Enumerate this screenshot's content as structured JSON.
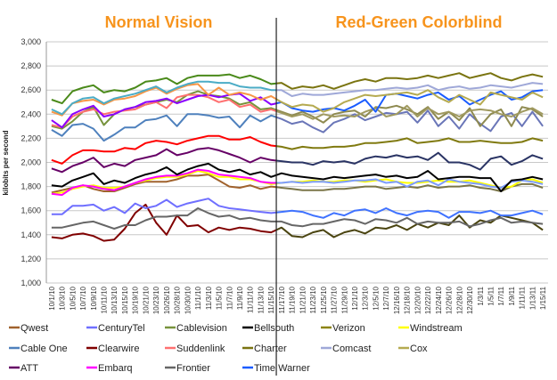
{
  "chart_data": {
    "type": "line",
    "titles": [
      "Normal Vision",
      "Red-Green Colorblind"
    ],
    "ylabel": "kilobits per second",
    "xlabel": "",
    "ylim": [
      1000,
      3000
    ],
    "yticks": [
      1000,
      1200,
      1400,
      1600,
      1800,
      2000,
      2200,
      2400,
      2600,
      2800,
      3000
    ],
    "ytick_labels": [
      "1,000",
      "1,200",
      "1,400",
      "1,600",
      "1,800",
      "2,000",
      "2,200",
      "2,400",
      "2,600",
      "2,800",
      "3,000"
    ],
    "grid": "horizontal",
    "divider_after": "11/15/10",
    "categories": [
      "10/1/10",
      "10/3/10",
      "10/5/10",
      "10/7/10",
      "10/9/10",
      "10/11/10",
      "10/13/10",
      "10/15/10",
      "10/19/10",
      "10/21/10",
      "10/23/10",
      "10/26/10",
      "10/28/10",
      "10/30/10",
      "11/1/10",
      "11/3/10",
      "11/5/10",
      "11/7/10",
      "11/9/10",
      "11/11/10",
      "11/13/10",
      "11/15/10",
      "11/17/10",
      "11/19/10",
      "11/21/10",
      "11/23/10",
      "11/25/10",
      "11/27/10",
      "11/29/10",
      "12/1/10",
      "12/3/10",
      "12/5/10",
      "12/7/10",
      "12/16/10",
      "12/18/10",
      "12/20/10",
      "12/22/10",
      "12/24/10",
      "12/26/10",
      "12/28/10",
      "12/30/10",
      "1/3/11",
      "1/5/11",
      "1/7/11",
      "1/9/11",
      "1/11/11",
      "1/13/11",
      "1/15/11"
    ],
    "series": [
      {
        "name": "Charter",
        "color_normal": "#4a8a1a",
        "color_colorblind": "#7a7410",
        "values": [
          2520,
          2490,
          2590,
          2620,
          2640,
          2580,
          2600,
          2590,
          2620,
          2670,
          2680,
          2700,
          2650,
          2700,
          2720,
          2720,
          2720,
          2730,
          2700,
          2720,
          2690,
          2650,
          2660,
          2610,
          2630,
          2620,
          2640,
          2610,
          2640,
          2670,
          2690,
          2670,
          2700,
          2700,
          2690,
          2700,
          2720,
          2700,
          2720,
          2740,
          2700,
          2720,
          2740,
          2700,
          2680,
          2710,
          2730,
          2710
        ]
      },
      {
        "name": "Comcast",
        "color_normal": "#4bacc6",
        "color_colorblind": "#9fa8d8",
        "values": [
          2440,
          2400,
          2490,
          2530,
          2540,
          2490,
          2530,
          2550,
          2570,
          2600,
          2630,
          2580,
          2620,
          2650,
          2670,
          2670,
          2660,
          2660,
          2630,
          2620,
          2620,
          2600,
          2600,
          2550,
          2570,
          2560,
          2560,
          2570,
          2580,
          2590,
          2600,
          2600,
          2610,
          2620,
          2610,
          2620,
          2640,
          2600,
          2620,
          2630,
          2610,
          2620,
          2640,
          2630,
          2620,
          2640,
          2660,
          2650
        ]
      },
      {
        "name": "Cox",
        "color_normal": "#f79646",
        "color_colorblind": "#b5aa50",
        "values": [
          2420,
          2390,
          2490,
          2510,
          2520,
          2480,
          2520,
          2530,
          2550,
          2590,
          2620,
          2570,
          2610,
          2640,
          2650,
          2560,
          2620,
          2560,
          2580,
          2560,
          2520,
          2550,
          2500,
          2460,
          2480,
          2470,
          2420,
          2450,
          2500,
          2530,
          2560,
          2550,
          2560,
          2570,
          2580,
          2560,
          2600,
          2540,
          2500,
          2560,
          2520,
          2480,
          2580,
          2560,
          2540,
          2520,
          2580,
          2540
        ]
      },
      {
        "name": "Time Warner",
        "color_normal": "#8b00ff",
        "color_colorblind": "#1a5cff",
        "values": [
          2350,
          2290,
          2400,
          2440,
          2470,
          2380,
          2400,
          2440,
          2460,
          2500,
          2510,
          2530,
          2490,
          2520,
          2550,
          2560,
          2540,
          2560,
          2570,
          2510,
          2540,
          2480,
          2500,
          2450,
          2430,
          2420,
          2440,
          2450,
          2430,
          2470,
          2520,
          2420,
          2560,
          2570,
          2550,
          2530,
          2560,
          2580,
          2520,
          2550,
          2480,
          2520,
          2560,
          2590,
          2520,
          2540,
          2590,
          2600
        ]
      },
      {
        "name": "Suddenlink",
        "color_normal": "#ff7070",
        "color_colorblind": "#a09a60",
        "values": [
          2310,
          2290,
          2380,
          2420,
          2440,
          2400,
          2420,
          2430,
          2440,
          2480,
          2500,
          2450,
          2540,
          2560,
          2560,
          2540,
          2500,
          2520,
          2460,
          2480,
          2420,
          2440,
          2410,
          2380,
          2400,
          2360,
          2400,
          2380,
          2390,
          2380,
          2420,
          2450,
          2380,
          2400,
          2470,
          2380,
          2450,
          2400,
          2420,
          2380,
          2430,
          2440,
          2430,
          2400,
          2380,
          2420,
          2450,
          2400
        ]
      },
      {
        "name": "Cablevision",
        "color_normal": "#77933c",
        "color_colorblind": "#8e8a50",
        "values": [
          2300,
          2280,
          2340,
          2420,
          2460,
          2310,
          2400,
          2440,
          2460,
          2480,
          2500,
          2520,
          2500,
          2560,
          2590,
          2560,
          2550,
          2530,
          2480,
          2500,
          2440,
          2450,
          2420,
          2390,
          2420,
          2380,
          2330,
          2400,
          2420,
          2430,
          2380,
          2460,
          2450,
          2470,
          2440,
          2400,
          2460,
          2360,
          2420,
          2350,
          2450,
          2300,
          2400,
          2440,
          2300,
          2460,
          2440,
          2380
        ]
      },
      {
        "name": "Cable One",
        "color_normal": "#4f81bd",
        "color_colorblind": "#6a76b8",
        "values": [
          2270,
          2220,
          2310,
          2320,
          2280,
          2180,
          2230,
          2290,
          2290,
          2350,
          2360,
          2390,
          2300,
          2400,
          2400,
          2390,
          2370,
          2380,
          2290,
          2390,
          2340,
          2390,
          2360,
          2320,
          2340,
          2290,
          2250,
          2330,
          2360,
          2400,
          2350,
          2380,
          2410,
          2400,
          2420,
          2330,
          2430,
          2300,
          2380,
          2280,
          2400,
          2320,
          2260,
          2380,
          2410,
          2300,
          2420,
          2300
        ]
      },
      {
        "name": "Verizon",
        "color_normal": "#ff0000",
        "color_colorblind": "#807a10",
        "values": [
          2020,
          1990,
          2060,
          2100,
          2100,
          2090,
          2090,
          2120,
          2110,
          2160,
          2180,
          2170,
          2150,
          2180,
          2200,
          2220,
          2220,
          2190,
          2190,
          2210,
          2170,
          2140,
          2130,
          2110,
          2130,
          2120,
          2120,
          2130,
          2130,
          2140,
          2160,
          2160,
          2170,
          2180,
          2200,
          2160,
          2170,
          2180,
          2200,
          2170,
          2170,
          2180,
          2170,
          2160,
          2160,
          2170,
          2200,
          2180
        ]
      },
      {
        "name": "ATT",
        "color_normal": "#660066",
        "color_colorblind": "#2a3464",
        "values": [
          1950,
          1920,
          1970,
          2000,
          2040,
          1960,
          1990,
          1970,
          2020,
          2040,
          2060,
          2110,
          2060,
          2080,
          2110,
          2120,
          2100,
          2070,
          2040,
          2000,
          2040,
          2020,
          2010,
          2000,
          2000,
          1980,
          2010,
          2000,
          2010,
          1990,
          2030,
          2050,
          2040,
          2060,
          2040,
          2050,
          2020,
          2080,
          2000,
          2000,
          1980,
          1940,
          2030,
          2050,
          1980,
          2010,
          2060,
          2030
        ]
      },
      {
        "name": "Bellsouth",
        "color_normal": "#000000",
        "color_colorblind": "#000000",
        "values": [
          1810,
          1800,
          1850,
          1880,
          1910,
          1820,
          1850,
          1830,
          1870,
          1900,
          1920,
          1960,
          1900,
          1940,
          1970,
          1990,
          1940,
          1920,
          1940,
          1900,
          1920,
          1880,
          1910,
          1890,
          1880,
          1870,
          1860,
          1880,
          1870,
          1880,
          1890,
          1900,
          1880,
          1890,
          1870,
          1880,
          1930,
          1860,
          1870,
          1880,
          1880,
          1870,
          1870,
          1760,
          1850,
          1860,
          1880,
          1860
        ]
      },
      {
        "name": "Embarq",
        "color_normal": "#ff00ff",
        "color_colorblind": "#7d9cff",
        "values": [
          1740,
          1730,
          1790,
          1810,
          1800,
          1780,
          1770,
          1800,
          1830,
          1860,
          1880,
          1890,
          1890,
          1910,
          1940,
          1930,
          1900,
          1890,
          1880,
          1870,
          1840,
          1830,
          1830,
          1840,
          1830,
          1840,
          1840,
          1830,
          1840,
          1850,
          1850,
          1860,
          1830,
          1840,
          1800,
          1840,
          1850,
          1810,
          1860,
          1840,
          1830,
          1820,
          1800,
          1790,
          1840,
          1850,
          1840,
          1820
        ]
      },
      {
        "name": "Windstream",
        "color_normal": "#ffff00",
        "color_colorblind": "#ffff00",
        "values": [
          1740,
          1750,
          1780,
          1800,
          1810,
          1790,
          1790,
          1800,
          1830,
          1850,
          1870,
          1880,
          1880,
          1900,
          1930,
          1910,
          1880,
          1880,
          1860,
          1860,
          1840,
          1820,
          1830,
          1840,
          1840,
          1850,
          1840,
          1840,
          1850,
          1850,
          1840,
          1850,
          1860,
          1840,
          1830,
          1830,
          1840,
          1850,
          1840,
          1840,
          1850,
          1830,
          1810,
          1790,
          1800,
          1850,
          1860,
          1830
        ]
      },
      {
        "name": "Qwest",
        "color_normal": "#a0622d",
        "color_colorblind": "#7a7548",
        "values": [
          1750,
          1770,
          1790,
          1810,
          1780,
          1760,
          1760,
          1790,
          1820,
          1840,
          1840,
          1840,
          1860,
          1890,
          1890,
          1900,
          1850,
          1800,
          1790,
          1810,
          1780,
          1800,
          1790,
          1780,
          1770,
          1770,
          1770,
          1780,
          1780,
          1790,
          1800,
          1800,
          1780,
          1790,
          1800,
          1790,
          1810,
          1790,
          1800,
          1800,
          1810,
          1790,
          1780,
          1760,
          1800,
          1820,
          1820,
          1790
        ]
      },
      {
        "name": "CenturyTel",
        "color_normal": "#6f6fff",
        "color_colorblind": "#3f72ff",
        "values": [
          1570,
          1570,
          1640,
          1640,
          1650,
          1600,
          1630,
          1580,
          1660,
          1620,
          1640,
          1690,
          1630,
          1660,
          1680,
          1700,
          1640,
          1620,
          1610,
          1600,
          1590,
          1580,
          1590,
          1600,
          1590,
          1560,
          1540,
          1580,
          1560,
          1600,
          1610,
          1580,
          1620,
          1580,
          1560,
          1590,
          1600,
          1590,
          1540,
          1590,
          1590,
          1580,
          1600,
          1560,
          1560,
          1580,
          1600,
          1570
        ]
      },
      {
        "name": "Frontier",
        "color_normal": "#666666",
        "color_colorblind": "#666666",
        "values": [
          1460,
          1460,
          1480,
          1500,
          1510,
          1480,
          1450,
          1480,
          1480,
          1520,
          1550,
          1550,
          1560,
          1560,
          1620,
          1580,
          1550,
          1560,
          1530,
          1540,
          1520,
          1510,
          1510,
          1480,
          1470,
          1490,
          1490,
          1510,
          1530,
          1520,
          1490,
          1530,
          1520,
          1500,
          1540,
          1490,
          1510,
          1500,
          1500,
          1510,
          1470,
          1490,
          1520,
          1540,
          1500,
          1510,
          1500,
          1490
        ]
      },
      {
        "name": "Clearwire",
        "color_normal": "#800000",
        "color_colorblind": "#4a4410",
        "values": [
          1380,
          1370,
          1400,
          1410,
          1390,
          1350,
          1360,
          1450,
          1580,
          1650,
          1500,
          1400,
          1560,
          1470,
          1480,
          1420,
          1460,
          1440,
          1460,
          1450,
          1430,
          1420,
          1460,
          1390,
          1380,
          1420,
          1440,
          1380,
          1420,
          1440,
          1410,
          1460,
          1450,
          1480,
          1440,
          1490,
          1460,
          1500,
          1480,
          1560,
          1460,
          1520,
          1500,
          1560,
          1540,
          1520,
          1500,
          1440
        ]
      }
    ],
    "legend": [
      {
        "name": "Qwest",
        "color": "#a0622d"
      },
      {
        "name": "CenturyTel",
        "color": "#6f6fff"
      },
      {
        "name": "Cablevision",
        "color": "#77933c"
      },
      {
        "name": "Bellsouth",
        "color": "#000000"
      },
      {
        "name": "Verizon",
        "color": "#8c8410"
      },
      {
        "name": "Windstream",
        "color": "#ffff00"
      },
      {
        "name": "Cable One",
        "color": "#4f81bd"
      },
      {
        "name": "Clearwire",
        "color": "#800000"
      },
      {
        "name": "Suddenlink",
        "color": "#ff7070"
      },
      {
        "name": "Charter",
        "color": "#7a7410"
      },
      {
        "name": "Comcast",
        "color": "#9fa8d8"
      },
      {
        "name": "Cox",
        "color": "#b5aa50"
      },
      {
        "name": "ATT",
        "color": "#660066"
      },
      {
        "name": "Embarq",
        "color": "#ff00ff"
      },
      {
        "name": "Frontier",
        "color": "#666666"
      },
      {
        "name": "Time Warner",
        "color": "#1a5cff"
      }
    ],
    "legend_placement": "bottom"
  }
}
